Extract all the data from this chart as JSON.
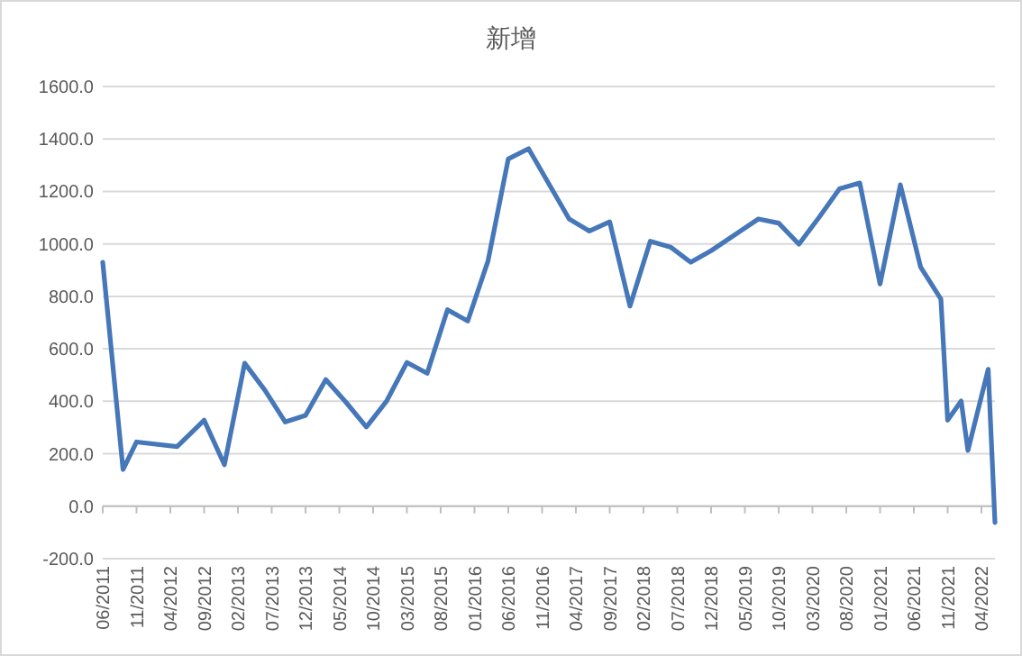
{
  "chart_data": {
    "type": "line",
    "title": "新增",
    "x": [
      "2011-06",
      "2011-09",
      "2011-11",
      "2012-05",
      "2012-09",
      "2012-12",
      "2013-03",
      "2013-06",
      "2013-09",
      "2013-12",
      "2014-03",
      "2014-06",
      "2014-09",
      "2014-12",
      "2015-03",
      "2015-06",
      "2015-09",
      "2015-12",
      "2016-03",
      "2016-06",
      "2016-09",
      "2017-03",
      "2017-06",
      "2017-09",
      "2017-12",
      "2018-03",
      "2018-06",
      "2018-09",
      "2018-12",
      "2019-07",
      "2019-10",
      "2020-01",
      "2020-04",
      "2020-07",
      "2020-10",
      "2021-01",
      "2021-04",
      "2021-07",
      "2021-10",
      "2021-11",
      "2022-01",
      "2022-02",
      "2022-05",
      "2022-06"
    ],
    "series": [
      {
        "color": "#4677b8",
        "values": [
          930,
          140,
          245,
          227,
          328,
          158,
          545,
          442,
          321,
          346,
          483,
          396,
          302,
          401,
          548,
          507,
          749,
          706,
          935,
          1324,
          1363,
          1095,
          1049,
          1084,
          763,
          1010,
          988,
          930,
          974,
          1095,
          1079,
          999,
          1102,
          1210,
          1232,
          847,
          1225,
          912,
          790,
          328,
          401,
          213,
          522,
          -62
        ]
      }
    ],
    "xlim": [
      "2011-06",
      "2022-06"
    ],
    "xticks": [
      {
        "value": "2011-06",
        "label": "06/2011"
      },
      {
        "value": "2011-11",
        "label": "11/2011"
      },
      {
        "value": "2012-04",
        "label": "04/2012"
      },
      {
        "value": "2012-09",
        "label": "09/2012"
      },
      {
        "value": "2013-02",
        "label": "02/2013"
      },
      {
        "value": "2013-07",
        "label": "07/2013"
      },
      {
        "value": "2013-12",
        "label": "12/2013"
      },
      {
        "value": "2014-05",
        "label": "05/2014"
      },
      {
        "value": "2014-10",
        "label": "10/2014"
      },
      {
        "value": "2015-03",
        "label": "03/2015"
      },
      {
        "value": "2015-08",
        "label": "08/2015"
      },
      {
        "value": "2016-01",
        "label": "01/2016"
      },
      {
        "value": "2016-06",
        "label": "06/2016"
      },
      {
        "value": "2016-11",
        "label": "11/2016"
      },
      {
        "value": "2017-04",
        "label": "04/2017"
      },
      {
        "value": "2017-09",
        "label": "09/2017"
      },
      {
        "value": "2018-02",
        "label": "02/2018"
      },
      {
        "value": "2018-07",
        "label": "07/2018"
      },
      {
        "value": "2018-12",
        "label": "12/2018"
      },
      {
        "value": "2019-05",
        "label": "05/2019"
      },
      {
        "value": "2019-10",
        "label": "10/2019"
      },
      {
        "value": "2020-03",
        "label": "03/2020"
      },
      {
        "value": "2020-08",
        "label": "08/2020"
      },
      {
        "value": "2021-01",
        "label": "01/2021"
      },
      {
        "value": "2021-06",
        "label": "06/2021"
      },
      {
        "value": "2021-11",
        "label": "11/2021"
      },
      {
        "value": "2022-04",
        "label": "04/2022"
      }
    ],
    "ylim": [
      -200,
      1600
    ],
    "yticks": [
      {
        "value": -200,
        "label": "-200.0"
      },
      {
        "value": 0,
        "label": "0.0"
      },
      {
        "value": 200,
        "label": "200.0"
      },
      {
        "value": 400,
        "label": "400.0"
      },
      {
        "value": 600,
        "label": "600.0"
      },
      {
        "value": 800,
        "label": "800.0"
      },
      {
        "value": 1000,
        "label": "1000.0"
      },
      {
        "value": 1200,
        "label": "1200.0"
      },
      {
        "value": 1400,
        "label": "1400.0"
      },
      {
        "value": 1600,
        "label": "1600.0"
      }
    ],
    "grid": "y",
    "marker": "none",
    "line_style": "solid"
  }
}
